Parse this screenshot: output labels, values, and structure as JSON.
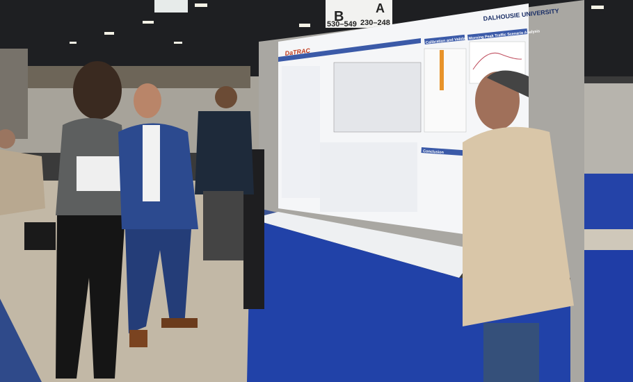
{
  "signs": [
    {
      "letter": "B",
      "range": "530–549"
    },
    {
      "letter": "A",
      "range": "230–248"
    }
  ],
  "poster": {
    "logo": "DaTRAC",
    "university": "DALHOUSIE UNIVERSITY",
    "sections": [
      "Calibration and Validation",
      "Morning Peak Traffic Scenario Analysis",
      "Conclusion"
    ]
  }
}
